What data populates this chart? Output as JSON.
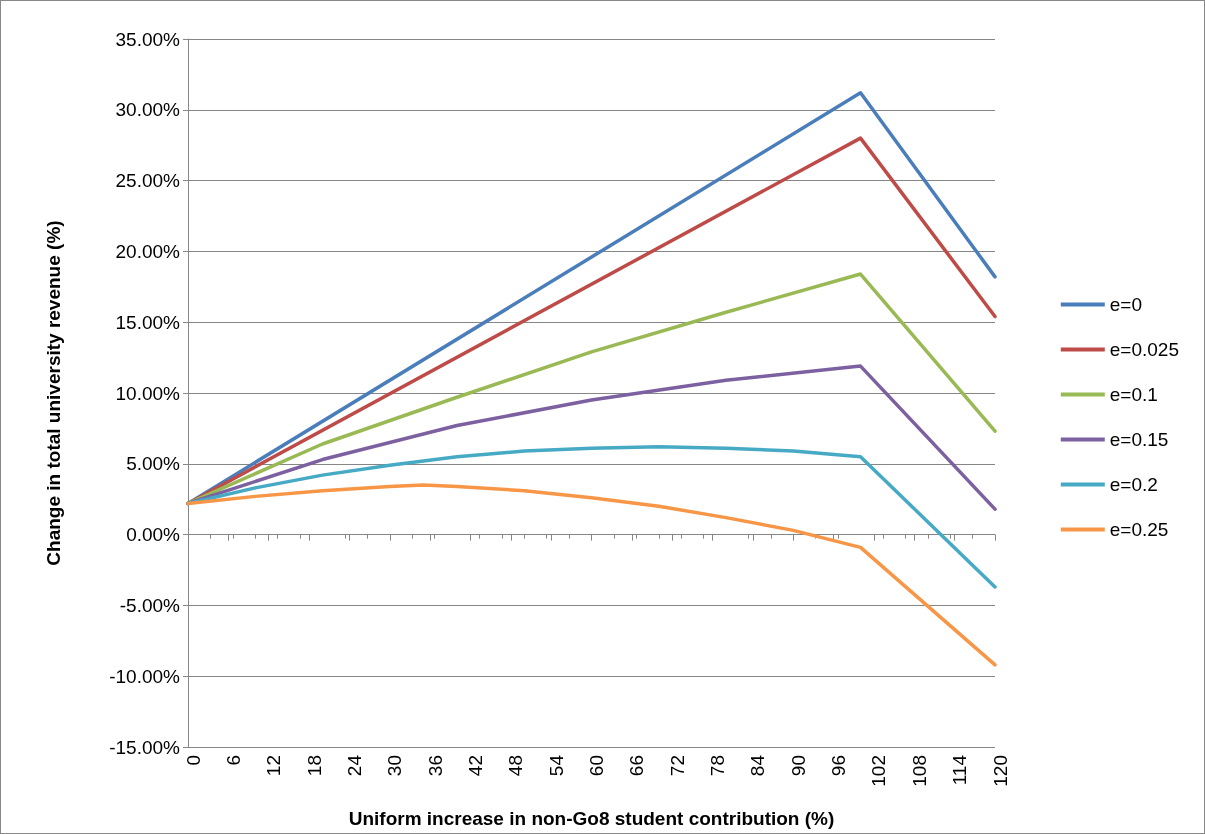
{
  "chart_data": {
    "type": "line",
    "xlabel": "Uniform increase in non-Go8 student contribution (%)",
    "ylabel": "Change in total university revenue (%)",
    "xlim": [
      0,
      120
    ],
    "xticks": [
      0,
      6,
      12,
      18,
      24,
      30,
      36,
      42,
      48,
      54,
      60,
      66,
      72,
      78,
      84,
      90,
      96,
      102,
      108,
      114,
      120
    ],
    "ylim": [
      -15,
      35
    ],
    "yticks": [
      {
        "value": -15,
        "label": "-15.00%"
      },
      {
        "value": -10,
        "label": "-10.00%"
      },
      {
        "value": -5,
        "label": "-5.00%"
      },
      {
        "value": 0,
        "label": "0.00%"
      },
      {
        "value": 5,
        "label": "5.00%"
      },
      {
        "value": 10,
        "label": "10.00%"
      },
      {
        "value": 15,
        "label": "15.00%"
      },
      {
        "value": 20,
        "label": "20.00%"
      },
      {
        "value": 25,
        "label": "25.00%"
      },
      {
        "value": 30,
        "label": "30.00%"
      },
      {
        "value": 35,
        "label": "35.00%"
      }
    ],
    "grid": "y",
    "legend": "right",
    "marker": "none",
    "line_style": "solid",
    "series": [
      {
        "name": "e=0",
        "color": "#4a7ebb",
        "x": [
          0,
          100,
          120
        ],
        "values": [
          2.2,
          31.2,
          18.2
        ]
      },
      {
        "name": "e=0.025",
        "color": "#be4b48",
        "x": [
          0,
          100,
          120
        ],
        "values": [
          2.2,
          28.0,
          15.4
        ]
      },
      {
        "name": "e=0.1",
        "color": "#98b954",
        "x": [
          0,
          20,
          40,
          60,
          80,
          100,
          120
        ],
        "values": [
          2.2,
          6.4,
          9.7,
          12.9,
          15.7,
          18.4,
          7.3
        ]
      },
      {
        "name": "e=0.15",
        "color": "#7d60a0",
        "x": [
          0,
          20,
          40,
          60,
          80,
          100,
          120
        ],
        "values": [
          2.2,
          5.3,
          7.7,
          9.5,
          10.9,
          11.9,
          1.8
        ]
      },
      {
        "name": "e=0.2",
        "color": "#46aac5",
        "x": [
          0,
          10,
          20,
          30,
          40,
          50,
          60,
          70,
          80,
          90,
          100,
          120
        ],
        "values": [
          2.2,
          3.3,
          4.2,
          4.9,
          5.5,
          5.9,
          6.1,
          6.2,
          6.1,
          5.9,
          5.5,
          -3.7
        ]
      },
      {
        "name": "e=0.25",
        "color": "#f79646",
        "x": [
          0,
          10,
          20,
          30,
          35,
          40,
          50,
          60,
          70,
          80,
          90,
          100,
          120
        ],
        "values": [
          2.2,
          2.7,
          3.1,
          3.4,
          3.5,
          3.4,
          3.1,
          2.6,
          2.0,
          1.2,
          0.3,
          -0.9,
          -9.2
        ]
      }
    ]
  }
}
